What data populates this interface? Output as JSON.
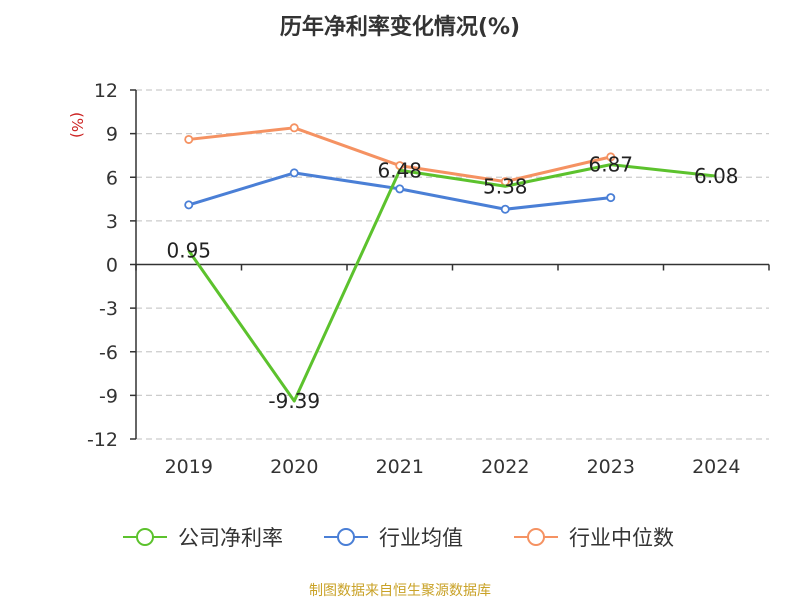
{
  "chart_data": {
    "type": "line",
    "title": "历年净利率变化情况(%)",
    "ylabel": "(%)",
    "xlabel": "",
    "categories": [
      "2019",
      "2020",
      "2021",
      "2022",
      "2023",
      "2024"
    ],
    "ylim": [
      -12,
      12
    ],
    "yticks": [
      12,
      9,
      6,
      3,
      0,
      -3,
      -6,
      -9,
      -12
    ],
    "grid": true,
    "legend_position": "bottom",
    "series": [
      {
        "name": "公司净利率",
        "color": "#5cc22d",
        "values": [
          0.95,
          -9.39,
          6.48,
          5.38,
          6.87,
          6.08
        ],
        "data_labels": [
          "0.95",
          "-9.39",
          "6.48",
          "5.38",
          "6.87",
          "6.08"
        ]
      },
      {
        "name": "行业均值",
        "color": "#4a7fd6",
        "values": [
          4.1,
          6.3,
          5.2,
          3.8,
          4.6,
          null
        ]
      },
      {
        "name": "行业中位数",
        "color": "#f59262",
        "values": [
          8.6,
          9.4,
          6.8,
          5.7,
          7.4,
          null
        ]
      }
    ]
  },
  "source": {
    "text": "制图数据来自恒生聚源数据库",
    "color": "#c9a227"
  },
  "ylabel_color": "#cc2222"
}
